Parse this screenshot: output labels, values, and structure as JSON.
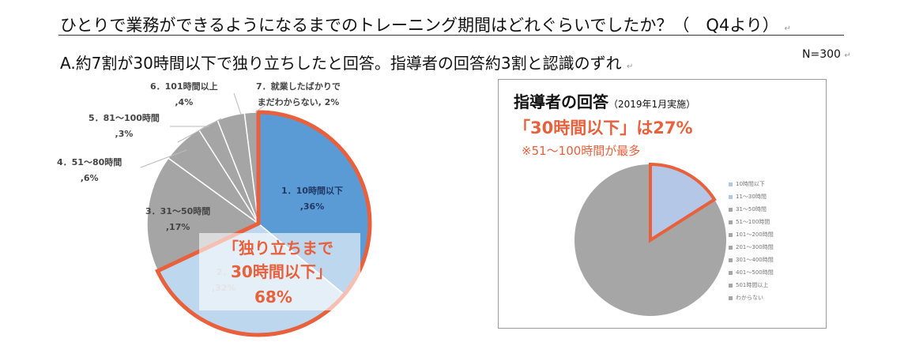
{
  "header": {
    "title": "ひとりで業務ができるようになるまでのトレーニング期間はどれぐらいでしたか？（　Q4より）",
    "subtitle": "A.約7割が30時間以下で独り立ちしたと回答。指導者の回答約3割と認識のずれ",
    "n": "N=300",
    "return_mark": "↵"
  },
  "chart_data": [
    {
      "type": "pie",
      "title": "",
      "categories": [
        "1．10時間以下",
        "2．11～30時間",
        "3．31～50時間",
        "4．51～80時間",
        "5．81～100時間",
        "6．101時間以上",
        "7．就業したばかりでまだわからない"
      ],
      "values": [
        36,
        32,
        17,
        6,
        3,
        4,
        2
      ],
      "labels": [
        [
          "1．10時間以下",
          ",36%"
        ],
        [
          "2．",
          ",32%"
        ],
        [
          "3．31～50時間",
          ",17%"
        ],
        [
          "4．51～80時間",
          ",6%"
        ],
        [
          "5．81～100時間",
          ",3%"
        ],
        [
          "6．101時間以上",
          ",4%"
        ],
        [
          "7．就業したばかりで",
          "まだわからない, 2%"
        ]
      ],
      "colors": [
        "#5b9bd5",
        "#bdd7ee",
        "#a5a5a5",
        "#a5a5a5",
        "#a5a5a5",
        "#a5a5a5",
        "#a5a5a5"
      ],
      "highlight": "#e8603c",
      "callout": [
        "「独り立ちまで",
        "30時間以下」",
        "68%"
      ]
    },
    {
      "type": "pie",
      "title": "指導者の回答",
      "title_note": "（2019年1月実施）",
      "headline": "「30時間以下」は27%",
      "note": "※51～100時間が最多",
      "legend": [
        "10時間以下",
        "11～30時間",
        "31～50時間",
        "51～100時間",
        "101～200時間",
        "201～300時間",
        "301～400時間",
        "401～500時間",
        "501時間以上",
        "わからない"
      ],
      "highlight_value": 16,
      "colors": {
        "highlight": "#b4c7e7",
        "rest": "#a6a6a6"
      },
      "legend_placement": "right"
    }
  ]
}
